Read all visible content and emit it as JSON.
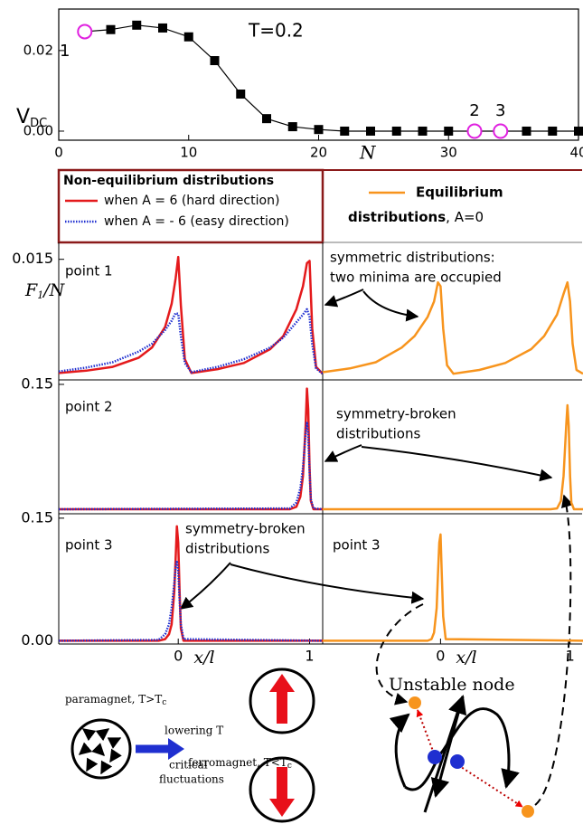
{
  "chart_data": [
    {
      "type": "line",
      "title": "T=0.2",
      "xlabel": "N",
      "ylabel": "V",
      "ylabel_sub": "DC",
      "x": [
        2,
        4,
        6,
        8,
        10,
        12,
        14,
        16,
        18,
        20,
        22,
        24,
        26,
        28,
        30,
        32,
        34,
        36,
        38,
        40
      ],
      "values": [
        0.0247,
        0.0252,
        0.0263,
        0.0256,
        0.0234,
        0.0175,
        0.0092,
        0.0031,
        0.0011,
        0.0004,
        0,
        0,
        0,
        0,
        0,
        0,
        0,
        0,
        0,
        0
      ],
      "markers": [
        "circle",
        "square",
        "square",
        "square",
        "square",
        "square",
        "square",
        "square",
        "square",
        "square",
        "square",
        "square",
        "square",
        "square",
        "square",
        "circle",
        "circle",
        "square",
        "square",
        "square"
      ],
      "point_labels": [
        "1",
        null,
        null,
        null,
        null,
        null,
        null,
        null,
        null,
        null,
        null,
        null,
        null,
        null,
        null,
        "2",
        "3",
        null,
        null,
        null
      ],
      "color": "#000000",
      "highlight_color": "#e020e0",
      "xlim": [
        0,
        40
      ],
      "xticks": [
        0,
        10,
        20,
        30,
        40
      ],
      "ylim": [
        -0.00225,
        0.0303
      ],
      "yticks": [
        {
          "value": 0,
          "label": "0.00"
        },
        {
          "value": 0.02,
          "label": "0.02"
        }
      ]
    },
    {
      "type": "line",
      "x": [
        -0.91,
        -0.7,
        -0.5,
        -0.3,
        -0.2,
        -0.1,
        -0.05,
        -0.02,
        0,
        0.02,
        0.05,
        0.1,
        0.3,
        0.5,
        0.7,
        0.8,
        0.9,
        0.95,
        0.98,
        1.0,
        1.02,
        1.05,
        1.1
      ],
      "series": [
        {
          "color": "#e41a1c",
          "style": "solid",
          "values": [
            0.0002,
            0.0005,
            0.001,
            0.0022,
            0.0035,
            0.0062,
            0.0092,
            0.0125,
            0.0153,
            0.009,
            0.002,
            0.0002,
            0.0007,
            0.0015,
            0.0033,
            0.005,
            0.0085,
            0.0115,
            0.0145,
            0.0148,
            0.006,
            0.001,
            0.0001
          ]
        },
        {
          "color": "#1f2fd0",
          "style": "dotted",
          "values": [
            0.0004,
            0.0009,
            0.0016,
            0.003,
            0.004,
            0.0058,
            0.007,
            0.008,
            0.0079,
            0.005,
            0.0015,
            0.0003,
            0.001,
            0.002,
            0.0035,
            0.0048,
            0.0068,
            0.0078,
            0.0085,
            0.0075,
            0.004,
            0.0008,
            0.0001
          ]
        }
      ],
      "xlim": [
        -0.91,
        1.1
      ],
      "ylim": [
        -0.0007,
        0.0172
      ],
      "yticks": [
        0.015
      ]
    },
    {
      "type": "line",
      "x": [
        -0.91,
        -0.7,
        -0.5,
        -0.3,
        -0.2,
        -0.1,
        -0.05,
        -0.02,
        0,
        0.02,
        0.05,
        0.1,
        0.3,
        0.5,
        0.7,
        0.8,
        0.9,
        0.95,
        0.98,
        1.0,
        1.02,
        1.05,
        1.1
      ],
      "series": [
        {
          "color": "#f7941d",
          "style": "solid",
          "values": [
            0.0003,
            0.0008,
            0.0016,
            0.0035,
            0.005,
            0.0075,
            0.0095,
            0.012,
            0.0115,
            0.006,
            0.0012,
            0.0001,
            0.0006,
            0.0015,
            0.0033,
            0.005,
            0.0078,
            0.0105,
            0.012,
            0.0095,
            0.004,
            0.0006,
            0.0001
          ]
        }
      ],
      "xlim": [
        -0.91,
        1.1
      ],
      "ylim": [
        -0.0007,
        0.0172
      ]
    },
    {
      "type": "line",
      "x": [
        -0.91,
        0.85,
        0.9,
        0.93,
        0.95,
        0.97,
        0.98,
        0.99,
        1.0,
        1.01,
        1.03,
        1.1
      ],
      "series": [
        {
          "color": "#e41a1c",
          "style": "solid",
          "values": [
            0,
            0,
            0.003,
            0.015,
            0.04,
            0.1,
            0.145,
            0.12,
            0.05,
            0.01,
            0,
            0
          ]
        },
        {
          "color": "#1f2fd0",
          "style": "dotted",
          "values": [
            0,
            0.001,
            0.008,
            0.025,
            0.05,
            0.09,
            0.105,
            0.09,
            0.045,
            0.012,
            0.001,
            0
          ]
        }
      ],
      "xlim": [
        -0.91,
        1.1
      ],
      "ylim": [
        -0.0054,
        0.1554
      ],
      "yticks": [
        0.15
      ]
    },
    {
      "type": "line",
      "x": [
        -0.91,
        0.85,
        0.9,
        0.93,
        0.95,
        0.97,
        0.98,
        0.99,
        1.0,
        1.01,
        1.03,
        1.1
      ],
      "series": [
        {
          "color": "#f7941d",
          "style": "solid",
          "values": [
            0,
            0,
            0.001,
            0.01,
            0.04,
            0.1,
            0.125,
            0.1,
            0.04,
            0.008,
            0,
            0
          ]
        }
      ],
      "xlim": [
        -0.91,
        1.1
      ],
      "ylim": [
        -0.0054,
        0.1554
      ]
    },
    {
      "type": "line",
      "x": [
        -0.91,
        -0.15,
        -0.1,
        -0.07,
        -0.05,
        -0.03,
        -0.02,
        -0.01,
        0,
        0.01,
        0.02,
        0.04,
        1.1
      ],
      "series": [
        {
          "color": "#e41a1c",
          "style": "solid",
          "values": [
            0,
            0,
            0.002,
            0.008,
            0.02,
            0.06,
            0.1,
            0.14,
            0.12,
            0.06,
            0.015,
            0,
            0
          ]
        },
        {
          "color": "#1f2fd0",
          "style": "dotted",
          "values": [
            0,
            0.001,
            0.008,
            0.02,
            0.04,
            0.07,
            0.09,
            0.098,
            0.085,
            0.05,
            0.02,
            0.002,
            0
          ]
        }
      ],
      "xlim": [
        -0.91,
        1.1
      ],
      "ylim": [
        -0.004,
        0.1554
      ],
      "yticks": [
        0.15,
        {
          "value": 0,
          "label": "0.00"
        }
      ],
      "xticks": [
        0,
        1
      ],
      "xlabel": "x/l"
    },
    {
      "type": "line",
      "x": [
        -0.91,
        -0.15,
        -0.1,
        -0.07,
        -0.05,
        -0.03,
        -0.02,
        -0.01,
        0,
        0.01,
        0.02,
        0.04,
        1.1
      ],
      "series": [
        {
          "color": "#f7941d",
          "style": "solid",
          "values": [
            0,
            0,
            0,
            0.002,
            0.01,
            0.04,
            0.08,
            0.12,
            0.13,
            0.08,
            0.03,
            0.002,
            0
          ]
        }
      ],
      "xlim": [
        -0.91,
        1.1
      ],
      "ylim": [
        -0.004,
        0.1554
      ],
      "xticks": [
        0,
        1
      ],
      "xlabel": "x/l"
    }
  ],
  "legend": {
    "title": "Non-equilibrium distributions",
    "entries": [
      {
        "label": "when A = 6 (hard direction)",
        "color": "#e41a1c",
        "style": "solid"
      },
      {
        "label": "when A = - 6 (easy direction)",
        "color": "#1f2fd0",
        "style": "dotted"
      }
    ],
    "eq_title": "Equilibrium",
    "eq_bold": "distributions",
    "eq_rest": ", A=0",
    "eq_color": "#f7941d"
  },
  "panels": {
    "ylabel": "F",
    "ylabel_sub": "1",
    "ylabel_rest": "/N",
    "labels": [
      "point 1",
      "point 2",
      "point 3",
      "point 3"
    ],
    "annotations": [
      "symmetric distributions:",
      "two minima are occupied",
      "symmetry-broken",
      "distributions",
      "symmetry-broken",
      "distributions"
    ]
  },
  "diagram": {
    "paramagnet": "paramagnet, T>T",
    "paramagnet_sub": "c",
    "lowering": "lowering T",
    "critical": "critical",
    "fluctuations": "fluctuations",
    "ferromagnet": "ferromagnet, T<T",
    "ferromagnet_sub": "c",
    "node": "Unstable node"
  }
}
